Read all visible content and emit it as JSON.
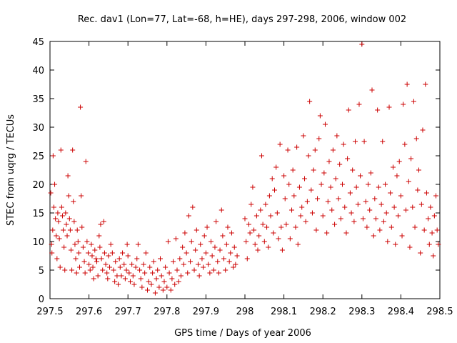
{
  "chart_data": {
    "type": "scatter",
    "title": "Rec. dav1 (Lon=77, Lat=-68, h=HE), days 297-298, 2006, window 002",
    "xlabel": "GPS time / Days of year 2006",
    "ylabel": "STEC from uqrg / TECUs",
    "xlim": [
      297.5,
      298.5
    ],
    "ylim": [
      0,
      45
    ],
    "xticks": [
      "297.5",
      "297.6",
      "297.7",
      "297.8",
      "297.9",
      "298",
      "298.1",
      "298.2",
      "298.3",
      "298.4",
      "298.5"
    ],
    "yticks": [
      "0",
      "5",
      "10",
      "15",
      "20",
      "25",
      "30",
      "35",
      "40",
      "45"
    ],
    "grid": false,
    "marker": "+",
    "color": "#cc0000",
    "points": [
      [
        297.502,
        18.5
      ],
      [
        297.504,
        9.5
      ],
      [
        297.505,
        8.0
      ],
      [
        297.507,
        12.0
      ],
      [
        297.508,
        25.0
      ],
      [
        297.51,
        16.0
      ],
      [
        297.512,
        20.0
      ],
      [
        297.514,
        14.0
      ],
      [
        297.516,
        11.0
      ],
      [
        297.518,
        7.0
      ],
      [
        297.52,
        15.0
      ],
      [
        297.522,
        13.5
      ],
      [
        297.524,
        10.5
      ],
      [
        297.526,
        5.5
      ],
      [
        297.528,
        26.0
      ],
      [
        297.53,
        16.0
      ],
      [
        297.532,
        14.5
      ],
      [
        297.534,
        12.0
      ],
      [
        297.536,
        9.0
      ],
      [
        297.538,
        5.0
      ],
      [
        297.54,
        15.0
      ],
      [
        297.542,
        13.0
      ],
      [
        297.544,
        11.0
      ],
      [
        297.546,
        21.5
      ],
      [
        297.548,
        18.0
      ],
      [
        297.55,
        14.0
      ],
      [
        297.552,
        12.0
      ],
      [
        297.554,
        8.5
      ],
      [
        297.556,
        5.0
      ],
      [
        297.558,
        26.0
      ],
      [
        297.56,
        17.0
      ],
      [
        297.562,
        13.5
      ],
      [
        297.564,
        9.5
      ],
      [
        297.566,
        7.0
      ],
      [
        297.568,
        4.5
      ],
      [
        297.57,
        12.0
      ],
      [
        297.572,
        10.0
      ],
      [
        297.574,
        8.0
      ],
      [
        297.576,
        5.5
      ],
      [
        297.578,
        33.5
      ],
      [
        297.58,
        18.0
      ],
      [
        297.582,
        12.5
      ],
      [
        297.585,
        9.0
      ],
      [
        297.588,
        6.5
      ],
      [
        297.59,
        4.5
      ],
      [
        297.592,
        24.0
      ],
      [
        297.595,
        10.0
      ],
      [
        297.598,
        8.0
      ],
      [
        297.6,
        6.0
      ],
      [
        297.603,
        5.0
      ],
      [
        297.606,
        9.5
      ],
      [
        297.608,
        7.5
      ],
      [
        297.61,
        5.5
      ],
      [
        297.612,
        3.5
      ],
      [
        297.615,
        8.5
      ],
      [
        297.618,
        7.0
      ],
      [
        297.62,
        6.5
      ],
      [
        297.623,
        4.0
      ],
      [
        297.626,
        11.0
      ],
      [
        297.628,
        9.0
      ],
      [
        297.63,
        13.0
      ],
      [
        297.632,
        7.0
      ],
      [
        297.635,
        5.0
      ],
      [
        297.638,
        13.5
      ],
      [
        297.64,
        8.0
      ],
      [
        297.643,
        6.0
      ],
      [
        297.646,
        4.5
      ],
      [
        297.648,
        3.5
      ],
      [
        297.65,
        7.5
      ],
      [
        297.653,
        5.5
      ],
      [
        297.656,
        9.5
      ],
      [
        297.66,
        8.0
      ],
      [
        297.663,
        5.0
      ],
      [
        297.666,
        3.0
      ],
      [
        297.668,
        6.5
      ],
      [
        297.672,
        4.0
      ],
      [
        297.675,
        2.5
      ],
      [
        297.678,
        7.0
      ],
      [
        297.68,
        5.5
      ],
      [
        297.683,
        4.0
      ],
      [
        297.686,
        8.0
      ],
      [
        297.69,
        6.0
      ],
      [
        297.693,
        3.5
      ],
      [
        297.696,
        5.0
      ],
      [
        297.698,
        9.5
      ],
      [
        297.7,
        7.5
      ],
      [
        297.703,
        4.5
      ],
      [
        297.706,
        3.0
      ],
      [
        297.71,
        6.0
      ],
      [
        297.713,
        4.0
      ],
      [
        297.716,
        2.5
      ],
      [
        297.72,
        5.5
      ],
      [
        297.723,
        7.0
      ],
      [
        297.726,
        9.5
      ],
      [
        297.73,
        5.0
      ],
      [
        297.733,
        3.5
      ],
      [
        297.736,
        2.0
      ],
      [
        297.74,
        6.0
      ],
      [
        297.743,
        4.5
      ],
      [
        297.746,
        8.0
      ],
      [
        297.75,
        1.5
      ],
      [
        297.753,
        3.0
      ],
      [
        297.756,
        5.5
      ],
      [
        297.76,
        2.5
      ],
      [
        297.763,
        4.5
      ],
      [
        297.766,
        6.5
      ],
      [
        297.77,
        1.0
      ],
      [
        297.773,
        3.5
      ],
      [
        297.776,
        5.0
      ],
      [
        297.78,
        2.0
      ],
      [
        297.783,
        7.0
      ],
      [
        297.786,
        4.0
      ],
      [
        297.79,
        1.5
      ],
      [
        297.793,
        3.0
      ],
      [
        297.796,
        5.5
      ],
      [
        297.8,
        2.0
      ],
      [
        297.803,
        10.0
      ],
      [
        297.806,
        4.5
      ],
      [
        297.81,
        1.5
      ],
      [
        297.813,
        3.5
      ],
      [
        297.816,
        6.5
      ],
      [
        297.82,
        2.5
      ],
      [
        297.823,
        10.5
      ],
      [
        297.826,
        5.0
      ],
      [
        297.83,
        3.0
      ],
      [
        297.833,
        7.0
      ],
      [
        297.836,
        4.0
      ],
      [
        297.84,
        9.0
      ],
      [
        297.843,
        6.0
      ],
      [
        297.846,
        11.5
      ],
      [
        297.85,
        8.0
      ],
      [
        297.853,
        4.5
      ],
      [
        297.856,
        14.5
      ],
      [
        297.86,
        6.5
      ],
      [
        297.863,
        10.0
      ],
      [
        297.866,
        16.0
      ],
      [
        297.87,
        5.0
      ],
      [
        297.873,
        8.5
      ],
      [
        297.876,
        12.0
      ],
      [
        297.88,
        6.0
      ],
      [
        297.883,
        4.0
      ],
      [
        297.886,
        9.5
      ],
      [
        297.89,
        7.0
      ],
      [
        297.893,
        5.5
      ],
      [
        297.896,
        11.0
      ],
      [
        297.9,
        8.0
      ],
      [
        297.903,
        12.5
      ],
      [
        297.906,
        6.0
      ],
      [
        297.91,
        4.5
      ],
      [
        297.913,
        10.0
      ],
      [
        297.916,
        7.5
      ],
      [
        297.92,
        5.0
      ],
      [
        297.923,
        9.0
      ],
      [
        297.926,
        13.5
      ],
      [
        297.93,
        6.5
      ],
      [
        297.933,
        4.5
      ],
      [
        297.936,
        8.5
      ],
      [
        297.94,
        15.5
      ],
      [
        297.943,
        11.0
      ],
      [
        297.946,
        7.0
      ],
      [
        297.95,
        5.0
      ],
      [
        297.953,
        9.5
      ],
      [
        297.956,
        12.5
      ],
      [
        297.96,
        6.5
      ],
      [
        297.963,
        8.0
      ],
      [
        297.966,
        11.5
      ],
      [
        297.97,
        5.5
      ],
      [
        297.973,
        9.0
      ],
      [
        297.976,
        6.0
      ],
      [
        297.98,
        7.5
      ],
      [
        298.0,
        14.0
      ],
      [
        298.003,
        10.0
      ],
      [
        298.006,
        7.0
      ],
      [
        298.01,
        13.0
      ],
      [
        298.013,
        11.5
      ],
      [
        298.016,
        16.5
      ],
      [
        298.02,
        19.5
      ],
      [
        298.023,
        12.0
      ],
      [
        298.026,
        9.5
      ],
      [
        298.03,
        14.5
      ],
      [
        298.033,
        8.5
      ],
      [
        298.036,
        11.0
      ],
      [
        298.04,
        15.5
      ],
      [
        298.043,
        25.0
      ],
      [
        298.046,
        13.0
      ],
      [
        298.05,
        10.0
      ],
      [
        298.053,
        16.5
      ],
      [
        298.056,
        12.5
      ],
      [
        298.06,
        9.0
      ],
      [
        298.063,
        18.0
      ],
      [
        298.066,
        14.5
      ],
      [
        298.07,
        21.0
      ],
      [
        298.073,
        11.5
      ],
      [
        298.076,
        19.0
      ],
      [
        298.08,
        23.0
      ],
      [
        298.083,
        15.0
      ],
      [
        298.086,
        10.5
      ],
      [
        298.09,
        27.0
      ],
      [
        298.093,
        12.5
      ],
      [
        298.096,
        8.5
      ],
      [
        298.1,
        21.5
      ],
      [
        298.103,
        17.5
      ],
      [
        298.106,
        13.0
      ],
      [
        298.11,
        26.0
      ],
      [
        298.113,
        20.0
      ],
      [
        298.116,
        10.5
      ],
      [
        298.12,
        15.5
      ],
      [
        298.123,
        22.5
      ],
      [
        298.126,
        18.0
      ],
      [
        298.13,
        12.5
      ],
      [
        298.133,
        26.5
      ],
      [
        298.136,
        9.5
      ],
      [
        298.14,
        19.5
      ],
      [
        298.143,
        14.5
      ],
      [
        298.146,
        16.0
      ],
      [
        298.15,
        28.5
      ],
      [
        298.153,
        21.0
      ],
      [
        298.156,
        13.5
      ],
      [
        298.16,
        17.0
      ],
      [
        298.163,
        25.0
      ],
      [
        298.166,
        34.5
      ],
      [
        298.17,
        19.0
      ],
      [
        298.173,
        15.0
      ],
      [
        298.176,
        22.5
      ],
      [
        298.18,
        26.0
      ],
      [
        298.183,
        12.0
      ],
      [
        298.186,
        17.5
      ],
      [
        298.19,
        28.0
      ],
      [
        298.193,
        32.0
      ],
      [
        298.196,
        20.0
      ],
      [
        298.2,
        14.5
      ],
      [
        298.203,
        22.0
      ],
      [
        298.206,
        30.5
      ],
      [
        298.21,
        11.5
      ],
      [
        298.213,
        17.0
      ],
      [
        298.216,
        24.0
      ],
      [
        298.22,
        19.5
      ],
      [
        298.223,
        15.5
      ],
      [
        298.226,
        26.0
      ],
      [
        298.23,
        13.0
      ],
      [
        298.233,
        21.0
      ],
      [
        298.236,
        28.5
      ],
      [
        298.24,
        17.5
      ],
      [
        298.243,
        23.5
      ],
      [
        298.246,
        14.0
      ],
      [
        298.25,
        20.0
      ],
      [
        298.253,
        27.0
      ],
      [
        298.256,
        16.0
      ],
      [
        298.26,
        11.5
      ],
      [
        298.263,
        24.5
      ],
      [
        298.266,
        33.0
      ],
      [
        298.27,
        18.5
      ],
      [
        298.273,
        15.0
      ],
      [
        298.276,
        22.5
      ],
      [
        298.28,
        13.5
      ],
      [
        298.283,
        27.5
      ],
      [
        298.286,
        19.5
      ],
      [
        298.29,
        16.5
      ],
      [
        298.293,
        34.0
      ],
      [
        298.296,
        21.5
      ],
      [
        298.3,
        44.5
      ],
      [
        298.303,
        14.0
      ],
      [
        298.306,
        27.5
      ],
      [
        298.31,
        17.0
      ],
      [
        298.313,
        12.5
      ],
      [
        298.316,
        20.0
      ],
      [
        298.32,
        15.5
      ],
      [
        298.323,
        22.0
      ],
      [
        298.326,
        36.5
      ],
      [
        298.33,
        11.0
      ],
      [
        298.333,
        17.5
      ],
      [
        298.336,
        14.0
      ],
      [
        298.34,
        33.0
      ],
      [
        298.343,
        19.5
      ],
      [
        298.346,
        12.0
      ],
      [
        298.35,
        16.5
      ],
      [
        298.353,
        27.5
      ],
      [
        298.356,
        13.5
      ],
      [
        298.36,
        20.0
      ],
      [
        298.363,
        15.0
      ],
      [
        298.366,
        10.0
      ],
      [
        298.37,
        33.5
      ],
      [
        298.373,
        18.5
      ],
      [
        298.376,
        12.5
      ],
      [
        298.38,
        23.0
      ],
      [
        298.383,
        16.0
      ],
      [
        298.386,
        9.5
      ],
      [
        298.39,
        21.5
      ],
      [
        298.393,
        14.5
      ],
      [
        298.396,
        24.0
      ],
      [
        298.4,
        18.0
      ],
      [
        298.403,
        11.0
      ],
      [
        298.406,
        34.0
      ],
      [
        298.41,
        27.0
      ],
      [
        298.413,
        15.5
      ],
      [
        298.416,
        37.5
      ],
      [
        298.42,
        20.5
      ],
      [
        298.423,
        9.0
      ],
      [
        298.426,
        24.5
      ],
      [
        298.43,
        16.0
      ],
      [
        298.433,
        34.5
      ],
      [
        298.436,
        12.5
      ],
      [
        298.44,
        28.0
      ],
      [
        298.443,
        19.0
      ],
      [
        298.446,
        22.5
      ],
      [
        298.45,
        8.0
      ],
      [
        298.453,
        16.5
      ],
      [
        298.456,
        29.5
      ],
      [
        298.46,
        12.0
      ],
      [
        298.463,
        37.5
      ],
      [
        298.466,
        18.5
      ],
      [
        298.47,
        14.0
      ],
      [
        298.473,
        9.5
      ],
      [
        298.476,
        16.0
      ],
      [
        298.48,
        11.5
      ],
      [
        298.483,
        7.5
      ],
      [
        298.486,
        14.5
      ],
      [
        298.49,
        18.0
      ],
      [
        298.493,
        12.0
      ],
      [
        298.496,
        9.5
      ]
    ]
  }
}
